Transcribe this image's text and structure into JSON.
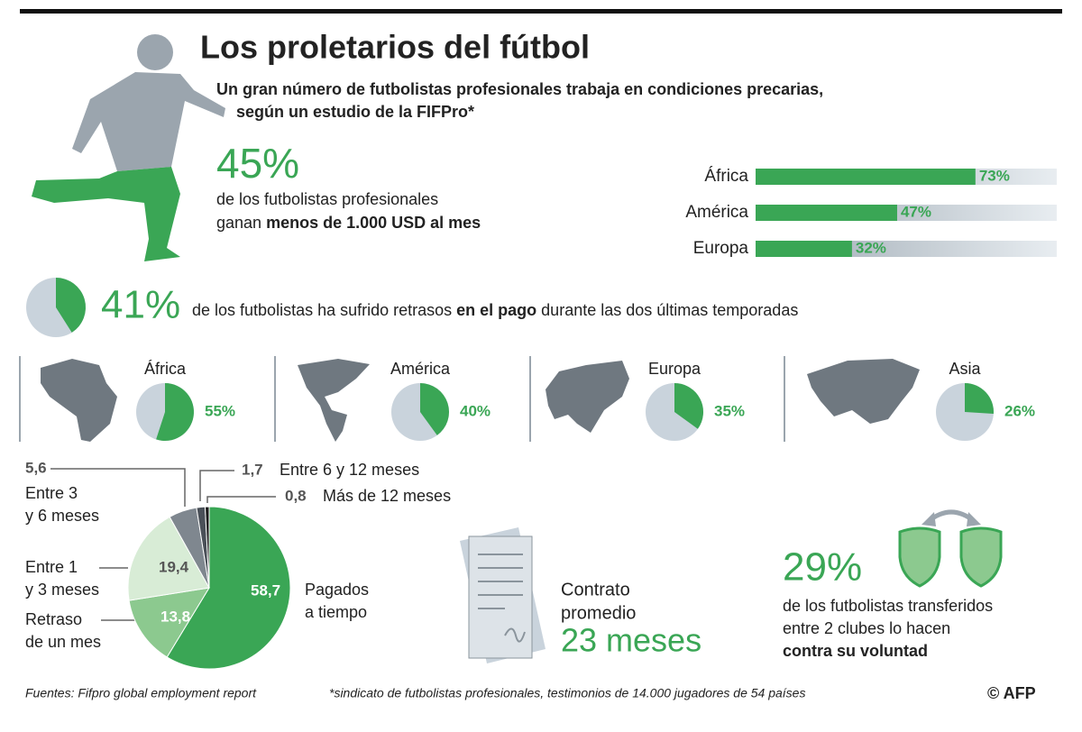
{
  "title": "Los proletarios del fútbol",
  "subtitle": [
    "Un gran número de futbolistas profesionales trabaja en condiciones precarias,",
    "según un estudio de la FIFPro*"
  ],
  "low_pay": {
    "figure": "45%",
    "lines": [
      [
        "de los futbolistas profesionales"
      ],
      [
        "ganan ",
        "menos de 1.000 USD al mes"
      ]
    ]
  },
  "chart_data": [
    {
      "type": "bar",
      "categories": [
        "África",
        "América",
        "Europa"
      ],
      "values": [
        73,
        47,
        32
      ],
      "value_labels": [
        "73%",
        "47%",
        "32%"
      ],
      "color": "#3aa655",
      "xlim": [
        0,
        100
      ]
    },
    {
      "type": "pie",
      "values": [
        41
      ],
      "value_labels": [
        "41%"
      ],
      "text": [
        "de los futbolistas ha sufrido retrasos ",
        "en el pago",
        " durante las dos últimas temporadas"
      ],
      "color": "#3aa655",
      "background": "#c9d3dc"
    },
    {
      "type": "pie",
      "categories": [
        "África",
        "América",
        "Europa",
        "Asia"
      ],
      "values": [
        55,
        40,
        35,
        26
      ],
      "value_labels": [
        "55%",
        "40%",
        "35%",
        "26%"
      ],
      "color": "#3aa655",
      "background": "#c9d3dc"
    },
    {
      "type": "pie",
      "categories": [
        [
          "Pagados",
          "a tiempo"
        ],
        [
          "Retraso",
          "de un mes"
        ],
        [
          "Entre 1",
          "y 3 meses"
        ],
        [
          "Entre 3",
          "y 6 meses"
        ],
        [
          "Entre 6 y 12 meses"
        ],
        [
          "Más de 12 meses"
        ]
      ],
      "values": [
        58.7,
        13.8,
        19.4,
        5.6,
        1.7,
        0.8
      ],
      "value_labels": [
        "58,7",
        "13,8",
        "19,4",
        "5,6",
        "1,7",
        "0,8"
      ],
      "colors": [
        "#3aa655",
        "#8cc98f",
        "#d8ecd6",
        "#7f878f",
        "#4a5058",
        "#1a1a1a"
      ]
    }
  ],
  "contract": {
    "lines": [
      "Contrato",
      "promedio"
    ],
    "figure": "23 meses"
  },
  "transfers": {
    "figure": "29%",
    "lines": [
      [
        "de los futbolistas transferidos"
      ],
      [
        "entre 2 clubes lo hacen"
      ],
      [
        "contra su voluntad"
      ]
    ]
  },
  "footer": {
    "source": "Fuentes: Fifpro global employment report",
    "note": "*sindicato de futbolistas profesionales, testimonios de 14.000 jugadores de 54 países",
    "credit": "© AFP"
  }
}
